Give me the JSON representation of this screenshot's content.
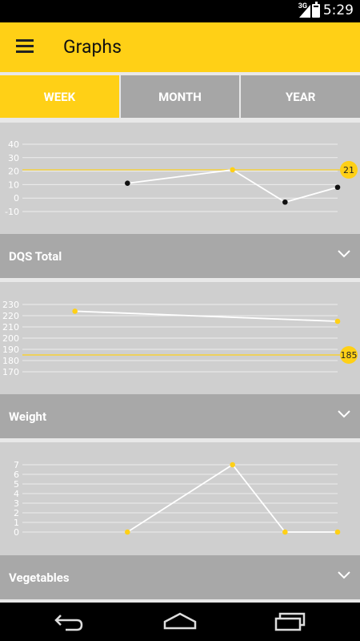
{
  "status_bar": {
    "network": "3G",
    "time": "5:29",
    "battery_level": 0.85
  },
  "app_bar": {
    "title": "Graphs"
  },
  "tabs": [
    {
      "label": "WEEK",
      "active": true
    },
    {
      "label": "MONTH",
      "active": false
    },
    {
      "label": "YEAR",
      "active": false
    }
  ],
  "colors": {
    "accent": "#ffd016",
    "tab_inactive": "#a6a6a6",
    "card_bg": "#cfcfcf",
    "section_bar": "#a8a8a8"
  },
  "sections": [
    {
      "label": "DQS Total",
      "icon": "chevron-down-icon"
    },
    {
      "label": "Weight",
      "icon": "chevron-down-icon"
    },
    {
      "label": "Vegetables",
      "icon": "chevron-down-icon"
    }
  ],
  "chart_data": [
    {
      "type": "line",
      "y_ticks": [
        "40",
        "30",
        "20",
        "10",
        "0",
        "-10"
      ],
      "ylim": [
        -10,
        40
      ],
      "goal": 21,
      "goal_label": "21",
      "points": [
        {
          "x": 2,
          "y": 11,
          "marker": "black"
        },
        {
          "x": 4,
          "y": 21,
          "marker": "accent"
        },
        {
          "x": 5,
          "y": -3,
          "marker": "black"
        },
        {
          "x": 6,
          "y": 8,
          "marker": "black"
        }
      ],
      "xlim": [
        0,
        6
      ],
      "grid": true
    },
    {
      "type": "line",
      "y_ticks": [
        "230",
        "220",
        "210",
        "200",
        "190",
        "180",
        "170"
      ],
      "ylim": [
        170,
        230
      ],
      "goal": 185,
      "goal_label": "185",
      "points": [
        {
          "x": 1,
          "y": 224,
          "marker": "accent"
        },
        {
          "x": 6,
          "y": 215,
          "marker": "accent"
        }
      ],
      "xlim": [
        0,
        6
      ],
      "grid": true
    },
    {
      "type": "line",
      "y_ticks": [
        "7",
        "6",
        "5",
        "4",
        "3",
        "2",
        "1",
        "0"
      ],
      "ylim": [
        0,
        7
      ],
      "goal": null,
      "points": [
        {
          "x": 2,
          "y": 0,
          "marker": "accent"
        },
        {
          "x": 4,
          "y": 7,
          "marker": "accent"
        },
        {
          "x": 5,
          "y": 0,
          "marker": "accent"
        },
        {
          "x": 6,
          "y": 0,
          "marker": "accent"
        }
      ],
      "xlim": [
        0,
        6
      ],
      "grid": true
    }
  ],
  "nav_bar": {
    "back": "back-icon",
    "home": "home-icon",
    "recents": "recents-icon"
  }
}
